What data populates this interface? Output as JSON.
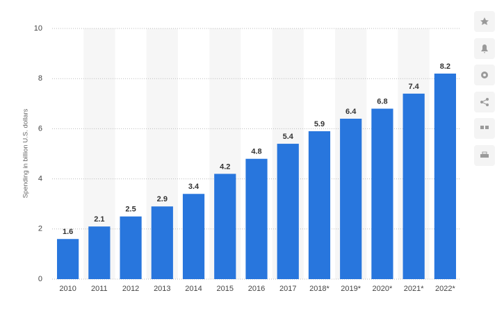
{
  "chart_data": {
    "type": "bar",
    "y_label": "Spending in billion U.S. dollars",
    "categories": [
      "2010",
      "2011",
      "2012",
      "2013",
      "2014",
      "2015",
      "2016",
      "2017",
      "2018*",
      "2019*",
      "2020*",
      "2021*",
      "2022*"
    ],
    "values": [
      1.6,
      2.1,
      2.5,
      2.9,
      3.4,
      4.2,
      4.8,
      5.4,
      5.9,
      6.4,
      6.8,
      7.4,
      8.2
    ],
    "color": "#2876dd",
    "ylim": [
      0,
      10
    ],
    "yticks": [
      0,
      2,
      4,
      6,
      8,
      10
    ],
    "grid": true
  }
}
